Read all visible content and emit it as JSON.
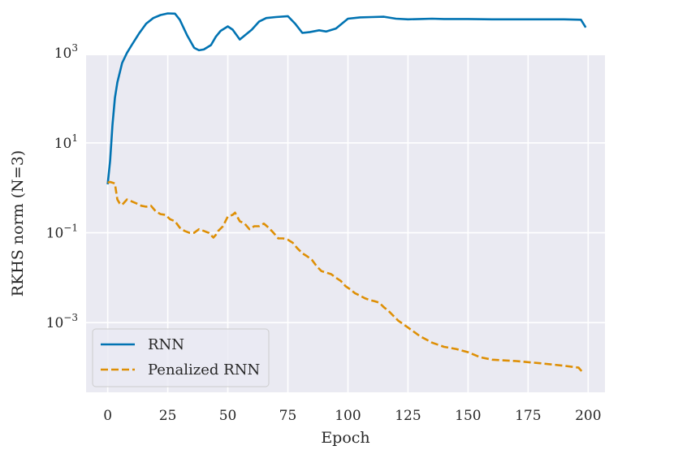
{
  "chart_data": {
    "type": "line",
    "xlabel": "Epoch",
    "ylabel": "RKHS norm (N=3)",
    "xlim": [
      -9,
      207
    ],
    "ylim_log10": [
      -4.55,
      2.95
    ],
    "yscale": "log",
    "grid": true,
    "legend_position": "lower-left",
    "x_ticks": [
      0,
      25,
      50,
      75,
      100,
      125,
      150,
      175,
      200
    ],
    "x_tick_labels": [
      "0",
      "25",
      "50",
      "75",
      "100",
      "125",
      "150",
      "175",
      "200"
    ],
    "y_ticks_log10": [
      3,
      1,
      -1,
      -3
    ],
    "y_tick_labels": [
      {
        "base": "10",
        "exp": "3"
      },
      {
        "base": "10",
        "exp": "1"
      },
      {
        "base": "10",
        "exp": "−1"
      },
      {
        "base": "10",
        "exp": "−3"
      }
    ],
    "series": [
      {
        "name": "RNN",
        "color": "#0173b2",
        "style": "solid",
        "x": [
          0,
          1,
          2,
          3,
          4,
          6,
          8,
          10,
          13,
          16,
          19,
          22,
          25,
          28,
          30,
          33,
          36,
          38,
          40,
          43,
          45,
          47,
          50,
          52,
          55,
          60,
          63,
          66,
          70,
          75,
          78,
          81,
          84,
          88,
          91,
          95,
          100,
          105,
          110,
          115,
          120,
          125,
          130,
          135,
          140,
          150,
          160,
          170,
          180,
          190,
          197,
          199
        ],
        "y": [
          1.2,
          4,
          25,
          100,
          220,
          600,
          1000,
          1500,
          2700,
          4500,
          6000,
          7000,
          7600,
          7500,
          5500,
          2500,
          1300,
          1150,
          1200,
          1500,
          2300,
          3100,
          3900,
          3300,
          2000,
          3300,
          5000,
          6000,
          6300,
          6600,
          4500,
          2800,
          2900,
          3200,
          3000,
          3500,
          5800,
          6200,
          6300,
          6400,
          5800,
          5600,
          5700,
          5800,
          5700,
          5700,
          5600,
          5600,
          5600,
          5600,
          5500,
          3700
        ]
      },
      {
        "name": "Penalized RNN",
        "color": "#de8f05",
        "style": "dashed",
        "x": [
          0,
          1,
          3,
          4,
          5,
          6,
          8,
          10,
          12,
          14,
          16,
          18,
          20,
          22,
          24,
          26,
          28,
          30,
          32,
          34,
          36,
          38,
          40,
          42,
          44,
          45,
          46,
          48,
          50,
          52,
          53,
          55,
          57,
          59,
          61,
          63,
          65,
          67,
          69,
          71,
          73,
          75,
          77,
          79,
          81,
          83,
          85,
          87,
          89,
          91,
          93,
          95,
          97,
          99,
          101,
          103,
          105,
          107,
          109,
          111,
          113,
          115,
          117,
          119,
          121,
          125,
          130,
          135,
          140,
          145,
          150,
          155,
          160,
          170,
          180,
          190,
          196,
          198
        ],
        "y": [
          1.3,
          1.35,
          1.25,
          0.55,
          0.45,
          0.42,
          0.55,
          0.5,
          0.45,
          0.4,
          0.38,
          0.4,
          0.3,
          0.26,
          0.25,
          0.2,
          0.18,
          0.13,
          0.11,
          0.1,
          0.1,
          0.12,
          0.11,
          0.1,
          0.078,
          0.09,
          0.11,
          0.14,
          0.23,
          0.25,
          0.28,
          0.18,
          0.16,
          0.12,
          0.14,
          0.14,
          0.16,
          0.13,
          0.1,
          0.075,
          0.075,
          0.07,
          0.06,
          0.045,
          0.035,
          0.03,
          0.025,
          0.018,
          0.014,
          0.013,
          0.012,
          0.01,
          0.0085,
          0.0065,
          0.0055,
          0.0045,
          0.004,
          0.0035,
          0.0032,
          0.003,
          0.0028,
          0.0022,
          0.0018,
          0.0014,
          0.0011,
          0.00078,
          0.0005,
          0.00036,
          0.00029,
          0.00026,
          0.00022,
          0.00017,
          0.00015,
          0.00014,
          0.000125,
          0.00011,
          0.0001,
          7.5e-05
        ]
      }
    ]
  }
}
